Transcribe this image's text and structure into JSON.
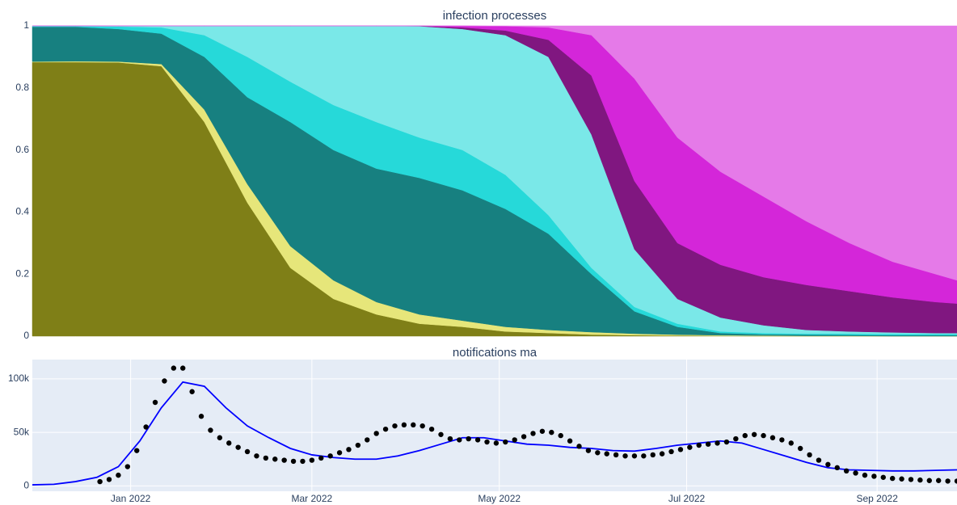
{
  "chart_data": [
    {
      "type": "stacked-area",
      "title": "infection processes",
      "x": [
        "2021-11-30",
        "2021-12-14",
        "2021-12-28",
        "2022-01-11",
        "2022-01-25",
        "2022-02-08",
        "2022-02-22",
        "2022-03-08",
        "2022-03-22",
        "2022-04-05",
        "2022-04-19",
        "2022-05-03",
        "2022-05-17",
        "2022-05-31",
        "2022-06-14",
        "2022-06-28",
        "2022-07-12",
        "2022-07-26",
        "2022-08-09",
        "2022-08-23",
        "2022-09-06",
        "2022-09-20",
        "2022-09-27"
      ],
      "series": [
        {
          "color": "#7f7f17",
          "values": [
            0.883,
            0.883,
            0.882,
            0.87,
            0.69,
            0.43,
            0.22,
            0.12,
            0.07,
            0.04,
            0.03,
            0.015,
            0.01,
            0.005,
            0.003,
            0.002,
            0.001,
            0,
            0,
            0,
            0,
            0,
            0
          ]
        },
        {
          "color": "#e6e67a",
          "values": [
            0.002,
            0.003,
            0.003,
            0.007,
            0.04,
            0.06,
            0.07,
            0.06,
            0.04,
            0.03,
            0.02,
            0.015,
            0.01,
            0.008,
            0.005,
            0.003,
            0.002,
            0.002,
            0.001,
            0.001,
            0,
            0,
            0
          ]
        },
        {
          "color": "#178080",
          "values": [
            0.112,
            0.111,
            0.105,
            0.098,
            0.17,
            0.28,
            0.4,
            0.42,
            0.43,
            0.44,
            0.42,
            0.38,
            0.31,
            0.187,
            0.072,
            0.025,
            0.007,
            0.004,
            0.004,
            0.003,
            0.003,
            0.003,
            0.003
          ]
        },
        {
          "color": "#26d9d9",
          "values": [
            0.002,
            0.002,
            0.008,
            0.02,
            0.07,
            0.13,
            0.13,
            0.145,
            0.15,
            0.13,
            0.13,
            0.11,
            0.06,
            0.02,
            0.014,
            0.01,
            0.005,
            0.004,
            0.003,
            0.004,
            0.004,
            0.004,
            0.004
          ]
        },
        {
          "color": "#7ae8e8",
          "values": [
            0.001,
            0.001,
            0.002,
            0.005,
            0.03,
            0.1,
            0.18,
            0.255,
            0.31,
            0.359,
            0.39,
            0.45,
            0.51,
            0.43,
            0.186,
            0.08,
            0.045,
            0.025,
            0.012,
            0.007,
            0.005,
            0.003,
            0.003
          ]
        },
        {
          "color": "#801780",
          "values": [
            0,
            0,
            0,
            0,
            0,
            0,
            0,
            0,
            0,
            0.001,
            0.005,
            0.015,
            0.055,
            0.19,
            0.22,
            0.18,
            0.17,
            0.155,
            0.145,
            0.13,
            0.113,
            0.1,
            0.095
          ]
        },
        {
          "color": "#d426d9",
          "values": [
            0,
            0,
            0,
            0,
            0,
            0,
            0,
            0,
            0,
            0,
            0.005,
            0.014,
            0.04,
            0.13,
            0.33,
            0.34,
            0.3,
            0.26,
            0.205,
            0.155,
            0.115,
            0.09,
            0.075
          ]
        },
        {
          "color": "#e57ae8",
          "values": [
            0,
            0,
            0,
            0,
            0,
            0,
            0,
            0,
            0,
            0,
            0,
            0.001,
            0.005,
            0.03,
            0.17,
            0.36,
            0.47,
            0.55,
            0.63,
            0.7,
            0.76,
            0.8,
            0.82
          ]
        }
      ],
      "xlim": [
        "2021-11-30",
        "2022-09-27"
      ],
      "ylim": [
        0,
        1
      ],
      "yticks": [
        0,
        0.2,
        0.4,
        0.6,
        0.8,
        1
      ],
      "grid": true
    },
    {
      "type": "line",
      "title": "notifications ma",
      "series": [
        {
          "mode": "lines",
          "color": "#0000ff",
          "x": [
            "2021-11-30",
            "2021-12-07",
            "2021-12-14",
            "2021-12-21",
            "2021-12-28",
            "2022-01-04",
            "2022-01-11",
            "2022-01-18",
            "2022-01-25",
            "2022-02-01",
            "2022-02-08",
            "2022-02-15",
            "2022-02-22",
            "2022-03-01",
            "2022-03-08",
            "2022-03-15",
            "2022-03-22",
            "2022-03-29",
            "2022-04-05",
            "2022-04-12",
            "2022-04-19",
            "2022-04-26",
            "2022-05-03",
            "2022-05-10",
            "2022-05-17",
            "2022-05-24",
            "2022-05-31",
            "2022-06-07",
            "2022-06-14",
            "2022-06-21",
            "2022-06-28",
            "2022-07-05",
            "2022-07-12",
            "2022-07-19",
            "2022-07-26",
            "2022-08-02",
            "2022-08-09",
            "2022-08-16",
            "2022-08-23",
            "2022-08-30",
            "2022-09-06",
            "2022-09-13",
            "2022-09-20",
            "2022-09-27"
          ],
          "values": [
            1000,
            1500,
            4000,
            8000,
            18000,
            42000,
            73000,
            97000,
            93000,
            73000,
            56000,
            45000,
            35000,
            29000,
            26500,
            25000,
            25000,
            28000,
            33000,
            39000,
            45000,
            45000,
            42000,
            39000,
            38000,
            36000,
            35000,
            33000,
            32500,
            35000,
            38000,
            40000,
            42000,
            40000,
            34000,
            28000,
            22000,
            17000,
            15000,
            14500,
            14000,
            14000,
            14500,
            15000
          ]
        },
        {
          "mode": "markers",
          "color": "#000000",
          "x": [
            "2021-12-22",
            "2021-12-25",
            "2021-12-28",
            "2021-12-31",
            "2022-01-03",
            "2022-01-06",
            "2022-01-09",
            "2022-01-12",
            "2022-01-15",
            "2022-01-18",
            "2022-01-21",
            "2022-01-24",
            "2022-01-27",
            "2022-01-30",
            "2022-02-02",
            "2022-02-05",
            "2022-02-08",
            "2022-02-11",
            "2022-02-14",
            "2022-02-17",
            "2022-02-20",
            "2022-02-23",
            "2022-02-26",
            "2022-03-01",
            "2022-03-04",
            "2022-03-07",
            "2022-03-10",
            "2022-03-13",
            "2022-03-16",
            "2022-03-19",
            "2022-03-22",
            "2022-03-25",
            "2022-03-28",
            "2022-03-31",
            "2022-04-03",
            "2022-04-06",
            "2022-04-09",
            "2022-04-12",
            "2022-04-15",
            "2022-04-18",
            "2022-04-21",
            "2022-04-24",
            "2022-04-27",
            "2022-04-30",
            "2022-05-03",
            "2022-05-06",
            "2022-05-09",
            "2022-05-12",
            "2022-05-15",
            "2022-05-18",
            "2022-05-21",
            "2022-05-24",
            "2022-05-27",
            "2022-05-30",
            "2022-06-02",
            "2022-06-05",
            "2022-06-08",
            "2022-06-11",
            "2022-06-14",
            "2022-06-17",
            "2022-06-20",
            "2022-06-23",
            "2022-06-26",
            "2022-06-29",
            "2022-07-02",
            "2022-07-05",
            "2022-07-08",
            "2022-07-11",
            "2022-07-14",
            "2022-07-17",
            "2022-07-20",
            "2022-07-23",
            "2022-07-26",
            "2022-07-29",
            "2022-08-01",
            "2022-08-04",
            "2022-08-07",
            "2022-08-10",
            "2022-08-13",
            "2022-08-16",
            "2022-08-19",
            "2022-08-22",
            "2022-08-25",
            "2022-08-28",
            "2022-08-31",
            "2022-09-03",
            "2022-09-06",
            "2022-09-09",
            "2022-09-12",
            "2022-09-15",
            "2022-09-18",
            "2022-09-21",
            "2022-09-24",
            "2022-09-27"
          ],
          "values": [
            4000,
            6000,
            10000,
            18000,
            33000,
            55000,
            78000,
            98000,
            110000,
            110000,
            88000,
            65000,
            52000,
            45000,
            40000,
            36000,
            32000,
            28000,
            26000,
            25000,
            24000,
            23000,
            23000,
            24000,
            26000,
            28000,
            31000,
            34000,
            38000,
            43000,
            49000,
            53000,
            56000,
            57000,
            57000,
            56000,
            53000,
            48000,
            44000,
            43000,
            44000,
            43000,
            41000,
            40000,
            41000,
            43000,
            46000,
            49000,
            51000,
            50000,
            47000,
            42000,
            37000,
            33000,
            31000,
            30000,
            29000,
            28000,
            28000,
            28000,
            29000,
            30000,
            32000,
            34000,
            36000,
            38000,
            39000,
            40000,
            41000,
            44000,
            47000,
            48000,
            47000,
            45000,
            43000,
            40000,
            35000,
            29000,
            24000,
            20000,
            17000,
            14000,
            12000,
            10000,
            9000,
            8000,
            7000,
            6500,
            6000,
            5500,
            5000,
            5000,
            4500,
            4500
          ]
        }
      ],
      "xlim": [
        "2021-11-30",
        "2022-09-27"
      ],
      "ylim": [
        -5000,
        118000
      ],
      "xticks": [
        {
          "value": "2022-01-01",
          "label": "Jan 2022"
        },
        {
          "value": "2022-03-01",
          "label": "Mar 2022"
        },
        {
          "value": "2022-05-01",
          "label": "May 2022"
        },
        {
          "value": "2022-07-01",
          "label": "Jul 2022"
        },
        {
          "value": "2022-09-01",
          "label": "Sep 2022"
        }
      ],
      "yticks": [
        0,
        {
          "value": 50000,
          "label": "50k"
        },
        {
          "value": 100000,
          "label": "100k"
        }
      ],
      "grid": true
    }
  ]
}
